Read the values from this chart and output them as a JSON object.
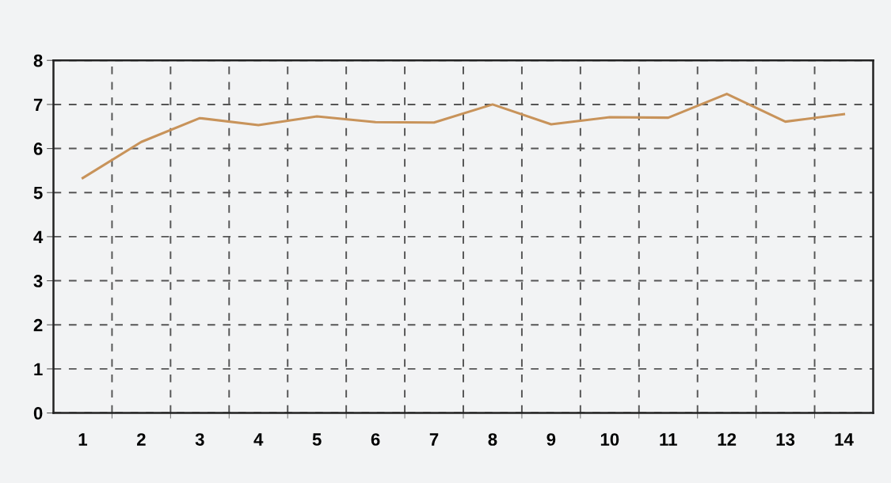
{
  "chart_data": {
    "type": "line",
    "categories": [
      "1",
      "2",
      "3",
      "4",
      "5",
      "6",
      "7",
      "8",
      "9",
      "10",
      "11",
      "12",
      "13",
      "14"
    ],
    "series": [
      {
        "color": "#c8935a",
        "values": [
          5.33,
          6.15,
          6.69,
          6.53,
          6.73,
          6.6,
          6.59,
          7.0,
          6.55,
          6.71,
          6.7,
          7.24,
          6.61,
          6.78
        ]
      }
    ],
    "ylim": [
      0,
      8
    ],
    "yticks": [
      0,
      1,
      2,
      3,
      4,
      5,
      6,
      7,
      8
    ],
    "grid": true,
    "marker": "none",
    "line_style": "solid"
  }
}
